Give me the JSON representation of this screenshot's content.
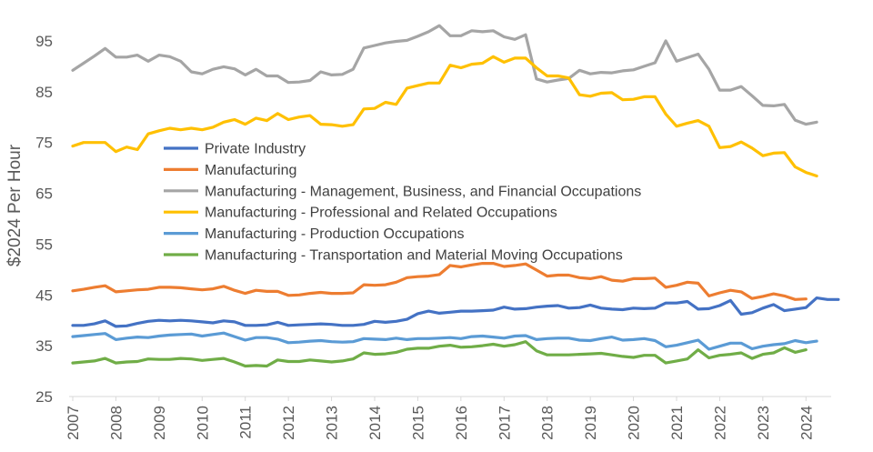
{
  "chart_data": {
    "type": "line",
    "title": "",
    "xlabel": "",
    "ylabel": "$2024 Per Hour",
    "ylim": [
      25,
      100
    ],
    "yticks": [
      25,
      35,
      45,
      55,
      65,
      75,
      85,
      95
    ],
    "xticks": [
      "2007",
      "2008",
      "2009",
      "2010",
      "2011",
      "2012",
      "2013",
      "2014",
      "2015",
      "2016",
      "2017",
      "2018",
      "2019",
      "2020",
      "2021",
      "2022",
      "2023",
      "2024"
    ],
    "x_start": 2007,
    "x_step": 0.25,
    "grid": false,
    "legend_position": "middle-left",
    "series": [
      {
        "name": "Private Industry",
        "color": "#4472C4",
        "values": [
          39.0,
          39.0,
          39.3,
          39.9,
          38.8,
          38.9,
          39.4,
          39.8,
          40.0,
          39.9,
          40.0,
          39.9,
          39.7,
          39.5,
          39.9,
          39.7,
          39.0,
          39.0,
          39.1,
          39.6,
          39.0,
          39.1,
          39.2,
          39.3,
          39.2,
          39.0,
          39.0,
          39.2,
          39.8,
          39.6,
          39.8,
          40.2,
          41.3,
          41.8,
          41.4,
          41.6,
          41.8,
          41.8,
          41.9,
          42.0,
          42.6,
          42.2,
          42.3,
          42.6,
          42.8,
          42.9,
          42.4,
          42.5,
          43.0,
          42.4,
          42.2,
          42.1,
          42.4,
          42.3,
          42.4,
          43.4,
          43.4,
          43.7,
          42.2,
          42.3,
          42.9,
          43.9,
          41.2,
          41.5,
          42.4,
          43.1,
          41.9,
          42.2,
          42.5,
          44.4,
          44.1,
          44.1
        ]
      },
      {
        "name": "Manufacturing",
        "color": "#ED7D31",
        "values": [
          45.8,
          46.1,
          46.5,
          46.8,
          45.6,
          45.8,
          46.0,
          46.1,
          46.5,
          46.5,
          46.4,
          46.2,
          46.0,
          46.2,
          46.7,
          45.9,
          45.3,
          45.9,
          45.7,
          45.7,
          44.9,
          45.0,
          45.3,
          45.5,
          45.3,
          45.3,
          45.4,
          47.0,
          46.9,
          47.0,
          47.5,
          48.4,
          48.6,
          48.7,
          49.0,
          50.8,
          50.5,
          50.9,
          51.2,
          51.2,
          50.6,
          50.8,
          51.1,
          49.9,
          48.7,
          48.9,
          48.9,
          48.4,
          48.2,
          48.6,
          47.9,
          47.7,
          48.2,
          48.2,
          48.3,
          46.5,
          46.9,
          47.5,
          47.3,
          44.8,
          45.4,
          45.9,
          45.6,
          44.3,
          44.7,
          45.2,
          44.8,
          44.1,
          44.2
        ]
      },
      {
        "name": "Manufacturing - Management, Business, and Financial Occupations",
        "color": "#A5A5A5",
        "values": [
          89.2,
          90.6,
          92.0,
          93.5,
          91.8,
          91.8,
          92.2,
          91.0,
          92.2,
          91.9,
          91.0,
          88.9,
          88.5,
          89.4,
          89.9,
          89.5,
          88.3,
          89.4,
          88.1,
          88.1,
          86.8,
          86.9,
          87.2,
          88.9,
          88.3,
          88.4,
          89.4,
          93.6,
          94.1,
          94.6,
          94.9,
          95.1,
          95.9,
          96.8,
          98.0,
          96.0,
          96.0,
          97.0,
          96.8,
          97.0,
          95.8,
          95.3,
          96.2,
          87.5,
          86.9,
          87.3,
          87.6,
          89.2,
          88.5,
          88.8,
          88.7,
          89.1,
          89.3,
          90.0,
          90.7,
          95.0,
          91.0,
          91.7,
          92.4,
          89.4,
          85.3,
          85.3,
          86.0,
          84.2,
          82.3,
          82.2,
          82.5,
          79.4,
          78.6,
          79.0
        ]
      },
      {
        "name": "Manufacturing - Professional and Related Occupations",
        "color": "#FFC000",
        "values": [
          74.3,
          75.0,
          75.0,
          75.0,
          73.2,
          74.1,
          73.6,
          76.7,
          77.3,
          77.8,
          77.5,
          77.8,
          77.5,
          78.0,
          79.0,
          79.5,
          78.6,
          79.8,
          79.3,
          80.7,
          79.5,
          80.0,
          80.3,
          78.6,
          78.5,
          78.2,
          78.5,
          81.6,
          81.7,
          82.9,
          82.5,
          85.7,
          86.2,
          86.7,
          86.7,
          90.2,
          89.7,
          90.4,
          90.6,
          91.9,
          90.8,
          91.6,
          91.6,
          89.7,
          88.1,
          88.1,
          87.7,
          84.4,
          84.1,
          84.7,
          84.8,
          83.4,
          83.5,
          84.0,
          84.0,
          80.6,
          78.2,
          78.8,
          79.3,
          78.2,
          74.0,
          74.2,
          75.1,
          73.9,
          72.4,
          72.9,
          73.0,
          70.2,
          69.1,
          68.4
        ]
      },
      {
        "name": "Manufacturing - Production Occupations",
        "color": "#5B9BD5",
        "values": [
          36.8,
          37.0,
          37.2,
          37.4,
          36.2,
          36.5,
          36.7,
          36.6,
          36.9,
          37.1,
          37.2,
          37.3,
          36.9,
          37.2,
          37.5,
          36.8,
          36.1,
          36.6,
          36.6,
          36.3,
          35.6,
          35.7,
          35.9,
          36.0,
          35.8,
          35.7,
          35.8,
          36.4,
          36.3,
          36.2,
          36.5,
          36.2,
          36.4,
          36.4,
          36.5,
          36.6,
          36.4,
          36.8,
          36.9,
          36.7,
          36.5,
          36.9,
          37.0,
          36.2,
          36.4,
          36.5,
          36.5,
          36.1,
          36.0,
          36.4,
          36.7,
          36.1,
          36.2,
          36.4,
          36.0,
          34.8,
          35.1,
          35.6,
          36.1,
          34.3,
          34.9,
          35.5,
          35.5,
          34.4,
          34.9,
          35.2,
          35.4,
          36.0,
          35.6,
          35.9
        ]
      },
      {
        "name": "Manufacturing - Transportation and Material Moving Occupations",
        "color": "#70AD47",
        "values": [
          31.6,
          31.8,
          32.0,
          32.5,
          31.6,
          31.8,
          31.9,
          32.4,
          32.3,
          32.3,
          32.5,
          32.4,
          32.1,
          32.3,
          32.5,
          31.8,
          31.0,
          31.1,
          31.0,
          32.2,
          31.9,
          31.9,
          32.2,
          32.0,
          31.8,
          32.0,
          32.4,
          33.6,
          33.3,
          33.4,
          33.7,
          34.3,
          34.5,
          34.5,
          34.9,
          35.1,
          34.7,
          34.8,
          35.0,
          35.3,
          34.9,
          35.2,
          35.8,
          34.0,
          33.2,
          33.2,
          33.2,
          33.3,
          33.4,
          33.5,
          33.2,
          32.9,
          32.7,
          33.1,
          33.1,
          31.6,
          32.0,
          32.4,
          34.2,
          32.6,
          33.1,
          33.3,
          33.6,
          32.5,
          33.3,
          33.6,
          34.6,
          33.7,
          34.2
        ]
      }
    ]
  }
}
